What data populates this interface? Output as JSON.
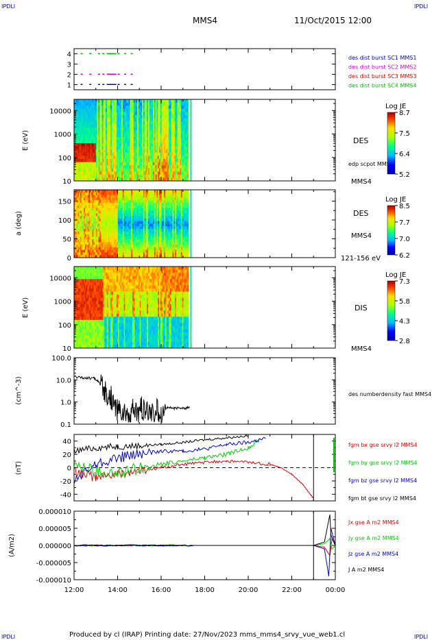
{
  "corner_labels": {
    "tl": "IPDLI",
    "tr": "IPDLI",
    "bl": "IPDLI",
    "br": "IPDLI"
  },
  "header": {
    "spacecraft": "MMS4",
    "date": "11/Oct/2015 12:00"
  },
  "footer": "Produced by cl (IRAP)   Printing date: 27/Nov/2023   mms_mms4_srvy_vue_web1.cl",
  "colors": {
    "mms1": "#0000cc",
    "mms2": "#cc00cc",
    "mms3": "#cc0000",
    "mms4": "#00bb00",
    "bx": "#dd0000",
    "by": "#00cc00",
    "bz": "#0000cc",
    "bt": "#000000"
  },
  "chart_data": [
    {
      "type": "scatter",
      "panel": "burst",
      "yticks": [
        "1",
        "2",
        "3",
        "4"
      ],
      "ylim": [
        0.5,
        4.5
      ],
      "xlim": [
        12,
        24
      ],
      "series": [
        {
          "name": "des dist burst SC1 MMS1",
          "y": 1,
          "x": [
            12.3,
            12.7,
            13.1,
            13.3,
            13.5,
            13.7,
            14.0,
            14.3,
            14.6
          ]
        },
        {
          "name": "des dist burst SC2 MMS2",
          "y": 2,
          "x": [
            12.3,
            12.7,
            13.1,
            13.3,
            13.5,
            13.7,
            14.0,
            14.3,
            14.6
          ]
        },
        {
          "name": "des dist burst SC3 MMS3",
          "y": 3,
          "x": []
        },
        {
          "name": "des dist burst SC4 MMS4",
          "y": 4,
          "x": [
            12.3,
            12.7,
            13.1,
            13.3,
            13.5,
            13.7,
            14.0,
            14.3,
            14.6
          ]
        }
      ]
    },
    {
      "type": "heatmap",
      "panel": "des_energy",
      "ylabel": "E (eV)",
      "yscale": "log",
      "ylim": [
        10,
        30000
      ],
      "yticks": [
        "10",
        "100",
        "1000",
        "10000"
      ],
      "data_xlim": [
        12.0,
        17.3
      ],
      "species": "DES",
      "annotation": "edp scpot MMS4",
      "spacecraft": "MMS4",
      "colorbar": {
        "label": "Log JE",
        "ticks": [
          "8.7",
          "7.5",
          "6.4",
          "5.2"
        ],
        "range": [
          5.2,
          8.7
        ]
      }
    },
    {
      "type": "heatmap",
      "panel": "des_pitch",
      "ylabel": "a (deg)",
      "ylim": [
        0,
        180
      ],
      "yticks": [
        "0",
        "50",
        "100",
        "150"
      ],
      "data_xlim": [
        12.0,
        17.3
      ],
      "species": "DES",
      "spacecraft": "MMS4",
      "energy_range": "121-156 eV",
      "colorbar": {
        "label": "Log JE",
        "ticks": [
          "8.5",
          "7.7",
          "7.0",
          "6.2"
        ],
        "range": [
          6.2,
          8.5
        ]
      }
    },
    {
      "type": "heatmap",
      "panel": "dis_energy",
      "ylabel": "E (eV)",
      "yscale": "log",
      "ylim": [
        10,
        30000
      ],
      "yticks": [
        "10",
        "100",
        "1000",
        "10000"
      ],
      "data_xlim": [
        12.0,
        17.3
      ],
      "species": "DIS",
      "spacecraft": "MMS4",
      "colorbar": {
        "label": "Log JE",
        "ticks": [
          "7.3",
          "5.8",
          "4.3",
          "2.8"
        ],
        "range": [
          2.8,
          7.3
        ]
      }
    },
    {
      "type": "line",
      "panel": "density",
      "ylabel": "(cm^-3)",
      "yscale": "log",
      "ylim": [
        0.1,
        100
      ],
      "yticks": [
        "0.1",
        "1.0",
        "10.0",
        "100.0"
      ],
      "series": [
        {
          "name": "des numberdensity fast MMS4",
          "x": [
            12.0,
            12.3,
            12.6,
            12.9,
            13.1,
            13.3,
            13.5,
            13.7,
            13.9,
            14.1,
            14.3,
            14.5,
            14.7,
            14.9,
            15.1,
            15.3,
            15.5,
            15.8,
            16.0,
            16.3,
            16.6,
            16.9,
            17.1,
            17.3
          ],
          "y": [
            14,
            13,
            12,
            12,
            9,
            4,
            2,
            1.6,
            0.6,
            0.4,
            0.3,
            0.25,
            0.4,
            0.3,
            0.5,
            0.3,
            0.35,
            0.45,
            0.3,
            0.6,
            0.5,
            0.55,
            0.5,
            0.6
          ]
        }
      ]
    },
    {
      "type": "line",
      "panel": "magnetic_field",
      "ylabel": "(nT)",
      "ylim": [
        -50,
        50
      ],
      "yticks": [
        "-40",
        "-20",
        "0",
        "20",
        "40"
      ],
      "series": [
        {
          "name": "fgm bx gse srvy l2 MMS4",
          "x": [
            12.0,
            13.0,
            14.0,
            15.0,
            16.0,
            17.0,
            18.0,
            19.0,
            20.0,
            21.0,
            21.5,
            22.0,
            22.5,
            22.8,
            23.0
          ],
          "y": [
            -5,
            -15,
            -10,
            -5,
            0,
            5,
            8,
            10,
            8,
            5,
            0,
            -10,
            -25,
            -38,
            -46
          ]
        },
        {
          "name": "fgm by gse srvy l2 MMS4",
          "x": [
            12.0,
            13.0,
            14.0,
            15.0,
            16.0,
            17.0,
            18.0,
            19.0,
            20.0,
            20.5
          ],
          "y": [
            5,
            -5,
            -10,
            0,
            5,
            10,
            15,
            20,
            30,
            42
          ]
        },
        {
          "name": "fgm bz gse srvy l2 MMS4",
          "x": [
            12.0,
            13.0,
            14.0,
            15.0,
            16.0,
            17.0,
            18.0,
            19.0,
            20.0,
            20.8
          ],
          "y": [
            -20,
            5,
            15,
            20,
            25,
            25,
            28,
            35,
            38,
            44
          ]
        },
        {
          "name": "fgm bt gse srvy l2 MMS4",
          "x": [
            12.0,
            13.0,
            14.0,
            15.0,
            16.0,
            17.0,
            18.0,
            19.0,
            20.0
          ],
          "y": [
            25,
            30,
            32,
            33,
            35,
            38,
            42,
            45,
            48
          ]
        }
      ]
    },
    {
      "type": "line",
      "panel": "current_density",
      "ylabel": "(A/m2)",
      "ylim": [
        -1e-05,
        1e-05
      ],
      "yticks": [
        "-0.000010",
        "-0.000005",
        "0.000000",
        "0.000005",
        "0.000010"
      ],
      "series": [
        {
          "name": "Jx gse A m2 MMS4",
          "x": [
            12.0,
            23.0,
            23.5,
            23.75,
            23.85,
            24.0
          ],
          "y": [
            0,
            0,
            -5e-07,
            -3e-06,
            2e-06,
            0
          ]
        },
        {
          "name": "Jy gse A m2 MMS4",
          "x": [
            12.0,
            23.0,
            23.5,
            23.75,
            23.85,
            24.0
          ],
          "y": [
            0,
            0,
            5e-07,
            2e-06,
            -1e-06,
            0
          ]
        },
        {
          "name": "Jz gse A m2 MMS4",
          "x": [
            12.0,
            23.0,
            23.5,
            23.7,
            23.8,
            24.0
          ],
          "y": [
            0,
            0,
            -1e-06,
            -9e-06,
            5e-06,
            0
          ]
        },
        {
          "name": "J A m2 MMS4",
          "x": [
            12.0,
            23.0,
            23.5,
            23.75,
            23.8,
            24.0
          ],
          "y": [
            0,
            0,
            1e-06,
            9e-06,
            3e-06,
            0
          ]
        }
      ]
    }
  ],
  "xaxis": {
    "ticks": [
      "12:00",
      "14:00",
      "16:00",
      "18:00",
      "20:00",
      "22:00",
      "00:00"
    ],
    "values": [
      12,
      14,
      16,
      18,
      20,
      22,
      24
    ],
    "xlim": [
      12,
      24
    ]
  },
  "bfield_marker": 23.0
}
